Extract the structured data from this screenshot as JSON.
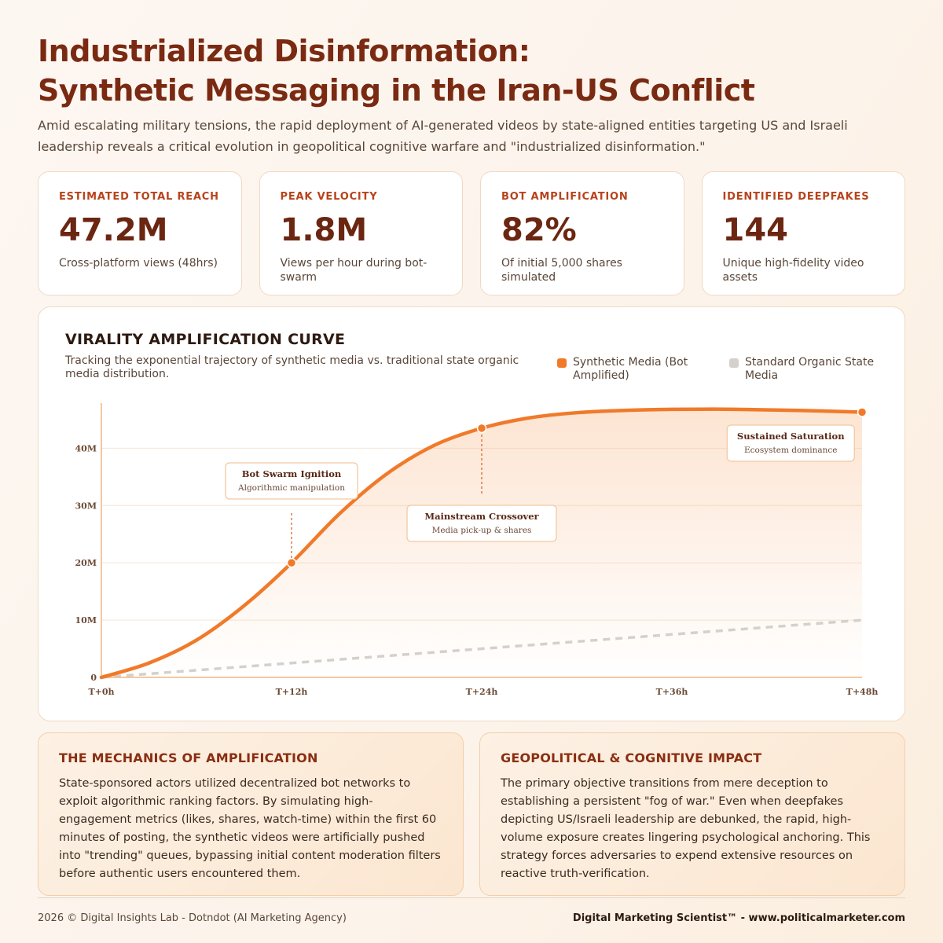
{
  "header": {
    "title_line1": "Industrialized Disinformation:",
    "title_line2": "Synthetic Messaging in the Iran-US Conflict",
    "subtitle": "Amid escalating military tensions, the rapid deployment of AI-generated videos by state-aligned entities targeting US and Israeli leadership reveals a critical evolution in geopolitical cognitive warfare and \"industrialized disinformation.\""
  },
  "kpis": [
    {
      "label": "ESTIMATED TOTAL REACH",
      "value": "47.2M",
      "desc": "Cross-platform views (48hrs)"
    },
    {
      "label": "PEAK VELOCITY",
      "value": "1.8M",
      "desc": "Views per hour during bot-swarm"
    },
    {
      "label": "BOT AMPLIFICATION",
      "value": "82%",
      "desc": "Of initial 5,000 shares simulated"
    },
    {
      "label": "IDENTIFIED DEEPFAKES",
      "value": "144",
      "desc": "Unique high-fidelity video assets"
    }
  ],
  "chart_data": {
    "type": "line",
    "title": "VIRALITY AMPLIFICATION CURVE",
    "subtitle": "Tracking the exponential trajectory of synthetic media vs. traditional state organic media distribution.",
    "x_ticks": [
      "T+0h",
      "T+12h",
      "T+24h",
      "T+36h",
      "T+48h"
    ],
    "y_ticks": [
      "0",
      "10M",
      "20M",
      "30M",
      "40M"
    ],
    "xlim": [
      0,
      48
    ],
    "ylim": [
      0,
      46.5
    ],
    "series": [
      {
        "name": "Synthetic Media (Bot Amplified)",
        "color": "#f07a2a",
        "x": [
          0,
          3,
          6,
          9,
          12,
          15,
          18,
          21,
          24,
          27,
          30,
          33,
          36,
          40,
          44,
          48
        ],
        "y": [
          0,
          2.5,
          6.5,
          12.5,
          20,
          28.5,
          35.5,
          40.5,
          43.5,
          45.3,
          46.2,
          46.6,
          46.8,
          46.8,
          46.6,
          46.3
        ],
        "markers": [
          [
            12,
            20
          ],
          [
            24,
            43.5
          ],
          [
            48,
            46.3
          ]
        ]
      },
      {
        "name": "Standard Organic State Media",
        "color": "#d4d0cc",
        "x": [
          0,
          48
        ],
        "y": [
          0,
          10
        ]
      }
    ],
    "annotations": [
      {
        "title": "Bot Swarm Ignition",
        "sub": "Algorithmic manipulation",
        "x": 12,
        "y": 20
      },
      {
        "title": "Mainstream Crossover",
        "sub": "Media pick-up & shares",
        "x": 24,
        "y": 43.5
      },
      {
        "title": "Sustained Saturation",
        "sub": "Ecosystem dominance",
        "x": 43.5,
        "y": 46.8
      }
    ],
    "grid": true,
    "legend": "top-right"
  },
  "panels": {
    "left": {
      "title": "THE MECHANICS OF AMPLIFICATION",
      "body": "State-sponsored actors utilized decentralized bot networks to exploit algorithmic ranking factors. By simulating high-engagement metrics (likes, shares, watch-time) within the first 60 minutes of posting, the synthetic videos were artificially pushed into \"trending\" queues, bypassing initial content moderation filters before authentic users encountered them."
    },
    "right": {
      "title": "GEOPOLITICAL & COGNITIVE IMPACT",
      "body": "The primary objective transitions from mere deception to establishing a persistent \"fog of war.\" Even when deepfakes depicting US/Israeli leadership are debunked, the rapid, high-volume exposure creates lingering psychological anchoring. This strategy forces adversaries to expend extensive resources on reactive truth-verification."
    }
  },
  "footer": {
    "left": "2026 © Digital Insights Lab - Dotndot (AI Marketing Agency)",
    "right": "Digital Marketing Scientist™ - www.politicalmarketer.com"
  }
}
